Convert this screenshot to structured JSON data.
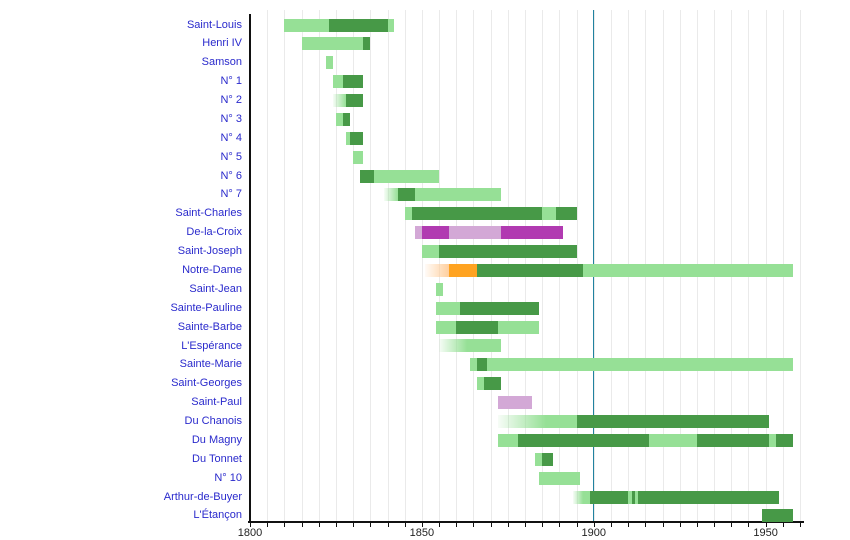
{
  "chart_data": {
    "type": "gantt-timeline",
    "title": "",
    "x_axis": {
      "min": 1800,
      "max": 1960,
      "tick_step": 5,
      "tick_labels": [
        1800,
        1850,
        1900,
        1950
      ],
      "grid": true
    },
    "marker_line_year": 1900,
    "colors": {
      "light_green": "#96E096",
      "dark_green": "#479947",
      "magenta": "#B13AB1",
      "plum": "#D3A8D6",
      "orange": "#FFA321",
      "light_orange": "#FFCF9E",
      "marker_line": "#2082A0",
      "grid_line": "#EAEAEA",
      "axis": "#111111",
      "row_label_text": "#2A2ACC",
      "tick_label_text": "#222222"
    },
    "rows": [
      {
        "label": "Saint-Louis",
        "segments": [
          {
            "start": 1810,
            "end": 1823,
            "color": "light_green"
          },
          {
            "start": 1823,
            "end": 1840,
            "color": "dark_green"
          },
          {
            "start": 1840,
            "end": 1842,
            "color": "light_green"
          }
        ]
      },
      {
        "label": "Henri IV",
        "segments": [
          {
            "start": 1815,
            "end": 1833,
            "color": "light_green"
          },
          {
            "start": 1833,
            "end": 1835,
            "color": "dark_green"
          }
        ]
      },
      {
        "label": "Samson",
        "segments": [
          {
            "start": 1822,
            "end": 1824,
            "color": "light_green"
          }
        ]
      },
      {
        "label": "N° 1",
        "segments": [
          {
            "start": 1824,
            "end": 1827,
            "color": "light_green"
          },
          {
            "start": 1827,
            "end": 1833,
            "color": "dark_green"
          }
        ]
      },
      {
        "label": "N° 2",
        "segments": [
          {
            "start": 1824,
            "end": 1828,
            "color": "light_green",
            "fade": "in"
          },
          {
            "start": 1828,
            "end": 1833,
            "color": "dark_green"
          }
        ]
      },
      {
        "label": "N° 3",
        "segments": [
          {
            "start": 1825,
            "end": 1827,
            "color": "light_green"
          },
          {
            "start": 1827,
            "end": 1829,
            "color": "dark_green"
          }
        ]
      },
      {
        "label": "N° 4",
        "segments": [
          {
            "start": 1828,
            "end": 1829,
            "color": "light_green"
          },
          {
            "start": 1829,
            "end": 1833,
            "color": "dark_green"
          }
        ]
      },
      {
        "label": "N° 5",
        "segments": [
          {
            "start": 1830,
            "end": 1833,
            "color": "light_green"
          }
        ]
      },
      {
        "label": "N° 6",
        "segments": [
          {
            "start": 1832,
            "end": 1836,
            "color": "dark_green"
          },
          {
            "start": 1836,
            "end": 1855,
            "color": "light_green"
          }
        ]
      },
      {
        "label": "N° 7",
        "segments": [
          {
            "start": 1839,
            "end": 1843,
            "color": "light_green",
            "fade": "in"
          },
          {
            "start": 1843,
            "end": 1848,
            "color": "dark_green"
          },
          {
            "start": 1848,
            "end": 1873,
            "color": "light_green"
          }
        ]
      },
      {
        "label": "Saint-Charles",
        "segments": [
          {
            "start": 1845,
            "end": 1847,
            "color": "light_green"
          },
          {
            "start": 1847,
            "end": 1885,
            "color": "dark_green"
          },
          {
            "start": 1885,
            "end": 1889,
            "color": "light_green"
          },
          {
            "start": 1889,
            "end": 1895,
            "color": "dark_green"
          }
        ]
      },
      {
        "label": "De-la-Croix",
        "segments": [
          {
            "start": 1848,
            "end": 1850,
            "color": "plum"
          },
          {
            "start": 1850,
            "end": 1858,
            "color": "magenta"
          },
          {
            "start": 1858,
            "end": 1873,
            "color": "plum"
          },
          {
            "start": 1873,
            "end": 1891,
            "color": "magenta"
          }
        ]
      },
      {
        "label": "Saint-Joseph",
        "segments": [
          {
            "start": 1850,
            "end": 1855,
            "color": "light_green"
          },
          {
            "start": 1855,
            "end": 1895,
            "color": "dark_green"
          }
        ]
      },
      {
        "label": "Notre-Dame",
        "segments": [
          {
            "start": 1851,
            "end": 1858,
            "color": "light_orange",
            "fade": "in"
          },
          {
            "start": 1858,
            "end": 1866,
            "color": "orange"
          },
          {
            "start": 1866,
            "end": 1897,
            "color": "dark_green"
          },
          {
            "start": 1897,
            "end": 1958,
            "color": "light_green"
          }
        ]
      },
      {
        "label": "Saint-Jean",
        "segments": [
          {
            "start": 1854,
            "end": 1856,
            "color": "light_green"
          }
        ]
      },
      {
        "label": "Sainte-Pauline",
        "segments": [
          {
            "start": 1854,
            "end": 1861,
            "color": "light_green"
          },
          {
            "start": 1861,
            "end": 1884,
            "color": "dark_green"
          }
        ]
      },
      {
        "label": "Sainte-Barbe",
        "segments": [
          {
            "start": 1854,
            "end": 1860,
            "color": "light_green"
          },
          {
            "start": 1860,
            "end": 1872,
            "color": "dark_green"
          },
          {
            "start": 1872,
            "end": 1884,
            "color": "light_green"
          }
        ]
      },
      {
        "label": "L'Espérance",
        "segments": [
          {
            "start": 1855,
            "end": 1863,
            "color": "light_green",
            "fade": "in"
          },
          {
            "start": 1863,
            "end": 1873,
            "color": "light_green"
          }
        ]
      },
      {
        "label": "Sainte-Marie",
        "segments": [
          {
            "start": 1864,
            "end": 1866,
            "color": "light_green"
          },
          {
            "start": 1866,
            "end": 1869,
            "color": "dark_green"
          },
          {
            "start": 1869,
            "end": 1958,
            "color": "light_green"
          }
        ]
      },
      {
        "label": "Saint-Georges",
        "segments": [
          {
            "start": 1866,
            "end": 1868,
            "color": "light_green"
          },
          {
            "start": 1868,
            "end": 1873,
            "color": "dark_green"
          }
        ]
      },
      {
        "label": "Saint-Paul",
        "segments": [
          {
            "start": 1872,
            "end": 1882,
            "color": "plum"
          }
        ]
      },
      {
        "label": "Du Chanois",
        "segments": [
          {
            "start": 1872,
            "end": 1886,
            "color": "light_green",
            "fade": "in"
          },
          {
            "start": 1886,
            "end": 1895,
            "color": "light_green"
          },
          {
            "start": 1895,
            "end": 1951,
            "color": "dark_green"
          }
        ]
      },
      {
        "label": "Du Magny",
        "segments": [
          {
            "start": 1872,
            "end": 1878,
            "color": "light_green"
          },
          {
            "start": 1878,
            "end": 1916,
            "color": "dark_green"
          },
          {
            "start": 1916,
            "end": 1930,
            "color": "light_green"
          },
          {
            "start": 1930,
            "end": 1951,
            "color": "dark_green"
          },
          {
            "start": 1951,
            "end": 1953,
            "color": "light_green"
          },
          {
            "start": 1953,
            "end": 1958,
            "color": "dark_green"
          }
        ]
      },
      {
        "label": "Du Tonnet",
        "segments": [
          {
            "start": 1883,
            "end": 1885,
            "color": "light_green"
          },
          {
            "start": 1885,
            "end": 1888,
            "color": "dark_green"
          }
        ]
      },
      {
        "label": "N° 10",
        "segments": [
          {
            "start": 1884,
            "end": 1896,
            "color": "light_green"
          }
        ]
      },
      {
        "label": "Arthur-de-Buyer",
        "segments": [
          {
            "start": 1894,
            "end": 1897,
            "color": "light_green",
            "fade": "in"
          },
          {
            "start": 1897,
            "end": 1899,
            "color": "light_green"
          },
          {
            "start": 1899,
            "end": 1910,
            "color": "dark_green"
          },
          {
            "start": 1910,
            "end": 1911,
            "color": "light_green"
          },
          {
            "start": 1911,
            "end": 1912,
            "color": "dark_green"
          },
          {
            "start": 1912,
            "end": 1913,
            "color": "light_green"
          },
          {
            "start": 1913,
            "end": 1954,
            "color": "dark_green"
          }
        ]
      },
      {
        "label": "L'Étançon",
        "segments": [
          {
            "start": 1949,
            "end": 1958,
            "color": "dark_green"
          }
        ]
      }
    ]
  }
}
